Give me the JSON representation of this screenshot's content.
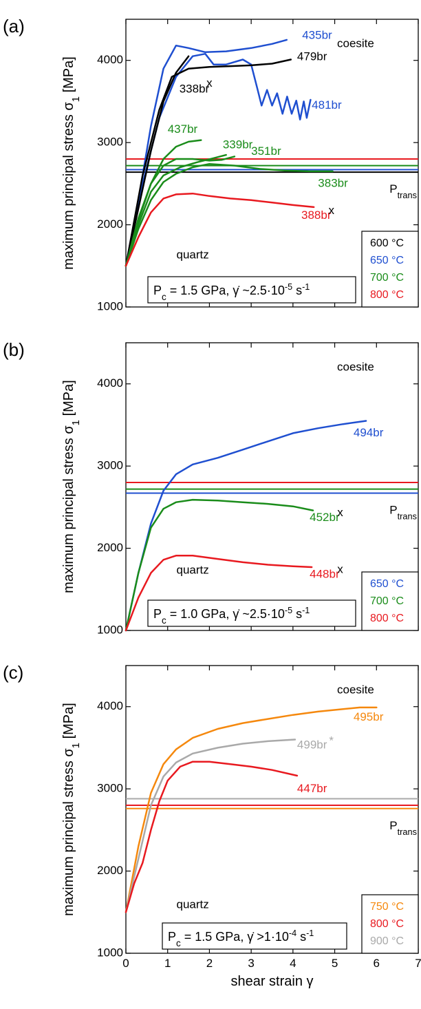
{
  "chart_data": [
    {
      "type": "line",
      "panel_label": "(a)",
      "ylabel": "maximum principal stress σ1 [MPa]",
      "xlabel": "",
      "xlim": [
        0,
        7
      ],
      "ylim": [
        1000,
        4500
      ],
      "xticks": [
        0,
        1,
        2,
        3,
        4,
        5,
        6,
        7
      ],
      "yticks": [
        1000,
        2000,
        3000,
        4000
      ],
      "conditions": "Pc = 1.5 GPa, γ̇ ~2.5·10-5 s-1",
      "region_labels": [
        {
          "text": "coesite",
          "x": 5.5,
          "y": 4160
        },
        {
          "text": "quartz",
          "x": 1.6,
          "y": 1590
        }
      ],
      "legend": [
        {
          "label": "600 °C",
          "color": "#000000"
        },
        {
          "label": "650 °C",
          "color": "#1f4fd0"
        },
        {
          "label": "700 °C",
          "color": "#1a8c1a"
        },
        {
          "label": "800 °C",
          "color": "#e8191f"
        }
      ],
      "ptrans": {
        "label": "Ptrans",
        "lines": [
          {
            "y": 2640,
            "color": "#000000"
          },
          {
            "y": 2670,
            "color": "#1f4fd0"
          },
          {
            "y": 2720,
            "color": "#1a8c1a"
          },
          {
            "y": 2800,
            "color": "#e8191f"
          }
        ]
      },
      "series": [
        {
          "name": "435br",
          "color": "#1f4fd0",
          "points": [
            [
              0,
              1500
            ],
            [
              0.3,
              2300
            ],
            [
              0.6,
              3200
            ],
            [
              0.9,
              3900
            ],
            [
              1.2,
              4180
            ],
            [
              1.5,
              4150
            ],
            [
              1.9,
              4100
            ],
            [
              2.4,
              4110
            ],
            [
              3.0,
              4150
            ],
            [
              3.5,
              4200
            ],
            [
              3.85,
              4250
            ]
          ],
          "label": {
            "text": "435br",
            "x": 4.22,
            "y": 4260
          }
        },
        {
          "name": "481br",
          "color": "#1f4fd0",
          "points": [
            [
              0,
              1500
            ],
            [
              0.4,
              2500
            ],
            [
              0.8,
              3300
            ],
            [
              1.2,
              3800
            ],
            [
              1.6,
              4050
            ],
            [
              1.9,
              4080
            ],
            [
              2.1,
              3950
            ],
            [
              2.4,
              3950
            ],
            [
              2.8,
              4010
            ],
            [
              3.0,
              3950
            ],
            [
              3.15,
              3650
            ],
            [
              3.25,
              3450
            ],
            [
              3.38,
              3640
            ],
            [
              3.5,
              3450
            ],
            [
              3.62,
              3600
            ],
            [
              3.75,
              3350
            ],
            [
              3.86,
              3560
            ],
            [
              3.97,
              3350
            ],
            [
              4.08,
              3510
            ],
            [
              4.17,
              3280
            ],
            [
              4.26,
              3500
            ],
            [
              4.33,
              3300
            ],
            [
              4.42,
              3520
            ]
          ],
          "label": {
            "text": "481br",
            "x": 4.45,
            "y": 3410
          }
        },
        {
          "name": "479br",
          "color": "#000000",
          "points": [
            [
              0,
              1500
            ],
            [
              0.4,
              2600
            ],
            [
              0.8,
              3400
            ],
            [
              1.1,
              3800
            ],
            [
              1.5,
              3900
            ],
            [
              2.0,
              3920
            ],
            [
              2.5,
              3930
            ],
            [
              3.0,
              3940
            ],
            [
              3.5,
              3960
            ],
            [
              3.95,
              4010
            ]
          ],
          "label": {
            "text": "479br",
            "x": 4.1,
            "y": 4000
          }
        },
        {
          "name": "338br",
          "color": "#000000",
          "points": [
            [
              0,
              1500
            ],
            [
              0.3,
              2200
            ],
            [
              0.6,
              2900
            ],
            [
              0.9,
              3500
            ],
            [
              1.2,
              3850
            ],
            [
              1.5,
              4050
            ]
          ],
          "label": {
            "text": "338br",
            "x": 1.28,
            "y": 3610
          },
          "marker": {
            "text": "x",
            "x": 2.0,
            "y": 3680
          }
        },
        {
          "name": "437br",
          "color": "#1a8c1a",
          "points": [
            [
              0,
              1500
            ],
            [
              0.3,
              2050
            ],
            [
              0.6,
              2500
            ],
            [
              0.9,
              2800
            ],
            [
              1.2,
              2950
            ],
            [
              1.5,
              3010
            ],
            [
              1.8,
              3030
            ]
          ],
          "label": {
            "text": "437br",
            "x": 1.0,
            "y": 3120
          }
        },
        {
          "name": "339br",
          "color": "#1a8c1a",
          "points": [
            [
              0,
              1500
            ],
            [
              0.3,
              2000
            ],
            [
              0.6,
              2400
            ],
            [
              0.9,
              2600
            ],
            [
              1.3,
              2700
            ],
            [
              1.7,
              2760
            ],
            [
              2.1,
              2810
            ],
            [
              2.4,
              2850
            ]
          ],
          "label": {
            "text": "339br",
            "x": 2.32,
            "y": 2930
          }
        },
        {
          "name": "351br",
          "color": "#1a8c1a",
          "points": [
            [
              0,
              1500
            ],
            [
              0.3,
              2080
            ],
            [
              0.6,
              2500
            ],
            [
              0.9,
              2720
            ],
            [
              1.2,
              2800
            ],
            [
              1.6,
              2800
            ],
            [
              2.0,
              2780
            ],
            [
              2.3,
              2790
            ],
            [
              2.6,
              2830
            ]
          ],
          "label": {
            "text": "351br",
            "x": 3.0,
            "y": 2850
          }
        },
        {
          "name": "383br",
          "color": "#1a8c1a",
          "points": [
            [
              0,
              1500
            ],
            [
              0.3,
              1950
            ],
            [
              0.6,
              2300
            ],
            [
              0.9,
              2520
            ],
            [
              1.2,
              2620
            ],
            [
              1.6,
              2700
            ],
            [
              2.0,
              2740
            ],
            [
              2.6,
              2720
            ],
            [
              3.2,
              2680
            ],
            [
              3.8,
              2660
            ],
            [
              4.4,
              2650
            ],
            [
              4.95,
              2650
            ]
          ],
          "label": {
            "text": "383br",
            "x": 4.6,
            "y": 2460
          }
        },
        {
          "name": "388br",
          "color": "#e8191f",
          "points": [
            [
              0,
              1500
            ],
            [
              0.3,
              1850
            ],
            [
              0.6,
              2150
            ],
            [
              0.9,
              2320
            ],
            [
              1.2,
              2370
            ],
            [
              1.6,
              2380
            ],
            [
              2.0,
              2350
            ],
            [
              2.5,
              2320
            ],
            [
              3.0,
              2300
            ],
            [
              3.5,
              2270
            ],
            [
              4.0,
              2240
            ],
            [
              4.5,
              2215
            ]
          ],
          "label": {
            "text": "388br",
            "x": 4.2,
            "y": 2070
          },
          "marker": {
            "text": "x",
            "x": 4.92,
            "y": 2130
          }
        }
      ]
    },
    {
      "type": "line",
      "panel_label": "(b)",
      "ylabel": "maximum principal stress σ1 [MPa]",
      "xlabel": "",
      "xlim": [
        0,
        7
      ],
      "ylim": [
        1000,
        4500
      ],
      "xticks": [
        0,
        1,
        2,
        3,
        4,
        5,
        6,
        7
      ],
      "yticks": [
        1000,
        2000,
        3000,
        4000
      ],
      "conditions": "Pc = 1.0 GPa, γ̇ ~2.5·10-5 s-1",
      "region_labels": [
        {
          "text": "coesite",
          "x": 5.5,
          "y": 4160
        },
        {
          "text": "quartz",
          "x": 1.6,
          "y": 1690
        }
      ],
      "legend": [
        {
          "label": "650 °C",
          "color": "#1f4fd0"
        },
        {
          "label": "700 °C",
          "color": "#1a8c1a"
        },
        {
          "label": "800 °C",
          "color": "#e8191f"
        }
      ],
      "ptrans": {
        "label": "Ptrans",
        "lines": [
          {
            "y": 2670,
            "color": "#1f4fd0"
          },
          {
            "y": 2720,
            "color": "#1a8c1a"
          },
          {
            "y": 2800,
            "color": "#e8191f"
          }
        ]
      },
      "series": [
        {
          "name": "494br",
          "color": "#1f4fd0",
          "points": [
            [
              0,
              1000
            ],
            [
              0.3,
              1700
            ],
            [
              0.6,
              2300
            ],
            [
              0.9,
              2700
            ],
            [
              1.2,
              2900
            ],
            [
              1.6,
              3020
            ],
            [
              2.2,
              3100
            ],
            [
              2.8,
              3200
            ],
            [
              3.4,
              3300
            ],
            [
              4.0,
              3400
            ],
            [
              4.6,
              3460
            ],
            [
              5.2,
              3510
            ],
            [
              5.75,
              3550
            ]
          ],
          "label": {
            "text": "494br",
            "x": 5.45,
            "y": 3360
          }
        },
        {
          "name": "452br",
          "color": "#1a8c1a",
          "points": [
            [
              0,
              1000
            ],
            [
              0.3,
              1700
            ],
            [
              0.6,
              2250
            ],
            [
              0.9,
              2480
            ],
            [
              1.2,
              2560
            ],
            [
              1.6,
              2590
            ],
            [
              2.2,
              2580
            ],
            [
              2.8,
              2560
            ],
            [
              3.4,
              2540
            ],
            [
              4.0,
              2510
            ],
            [
              4.48,
              2460
            ]
          ],
          "label": {
            "text": "452br",
            "x": 4.4,
            "y": 2330
          },
          "marker": {
            "text": "x",
            "x": 5.13,
            "y": 2390
          }
        },
        {
          "name": "448br",
          "color": "#e8191f",
          "points": [
            [
              0,
              1000
            ],
            [
              0.3,
              1400
            ],
            [
              0.6,
              1700
            ],
            [
              0.9,
              1860
            ],
            [
              1.2,
              1910
            ],
            [
              1.6,
              1910
            ],
            [
              2.2,
              1870
            ],
            [
              2.8,
              1830
            ],
            [
              3.4,
              1800
            ],
            [
              4.0,
              1780
            ],
            [
              4.45,
              1770
            ]
          ],
          "label": {
            "text": "448br",
            "x": 4.4,
            "y": 1640
          },
          "marker": {
            "text": "x",
            "x": 5.13,
            "y": 1700
          }
        }
      ]
    },
    {
      "type": "line",
      "panel_label": "(c)",
      "ylabel": "maximum principal stress σ1 [MPa]",
      "xlabel": "shear strain γ",
      "xlim": [
        0,
        7
      ],
      "ylim": [
        1000,
        4500
      ],
      "xticks": [
        0,
        1,
        2,
        3,
        4,
        5,
        6,
        7
      ],
      "yticks": [
        1000,
        2000,
        3000,
        4000
      ],
      "conditions": "Pc = 1.5 GPa, γ̇ >1·10-4 s-1",
      "region_labels": [
        {
          "text": "coesite",
          "x": 5.5,
          "y": 4160
        },
        {
          "text": "quartz",
          "x": 1.6,
          "y": 1550
        }
      ],
      "legend": [
        {
          "label": "750 °C",
          "color": "#f5880d"
        },
        {
          "label": "800 °C",
          "color": "#e8191f"
        },
        {
          "label": "900 °C",
          "color": "#a9a9a9"
        }
      ],
      "ptrans": {
        "label": "Ptrans",
        "lines": [
          {
            "y": 2760,
            "color": "#f5880d"
          },
          {
            "y": 2800,
            "color": "#e8191f"
          },
          {
            "y": 2880,
            "color": "#a9a9a9"
          }
        ]
      },
      "series": [
        {
          "name": "495br",
          "color": "#f5880d",
          "points": [
            [
              0,
              1500
            ],
            [
              0.3,
              2300
            ],
            [
              0.6,
              2950
            ],
            [
              0.9,
              3300
            ],
            [
              1.2,
              3480
            ],
            [
              1.6,
              3620
            ],
            [
              2.2,
              3730
            ],
            [
              2.8,
              3800
            ],
            [
              3.4,
              3850
            ],
            [
              4.0,
              3900
            ],
            [
              4.6,
              3940
            ],
            [
              5.2,
              3970
            ],
            [
              5.6,
              3990
            ],
            [
              6.0,
              3990
            ]
          ],
          "label": {
            "text": "495br",
            "x": 5.45,
            "y": 3830
          }
        },
        {
          "name": "499br",
          "color": "#a9a9a9",
          "points": [
            [
              0,
              1500
            ],
            [
              0.3,
              2150
            ],
            [
              0.6,
              2800
            ],
            [
              0.9,
              3150
            ],
            [
              1.2,
              3320
            ],
            [
              1.6,
              3430
            ],
            [
              2.2,
              3500
            ],
            [
              2.8,
              3550
            ],
            [
              3.4,
              3580
            ],
            [
              4.05,
              3600
            ]
          ],
          "label": {
            "text": "499br",
            "x": 4.1,
            "y": 3490
          },
          "marker": {
            "text": "*",
            "x": 4.92,
            "y": 3540
          }
        },
        {
          "name": "447br",
          "color": "#e8191f",
          "points": [
            [
              0,
              1500
            ],
            [
              0.2,
              1850
            ],
            [
              0.4,
              2100
            ],
            [
              0.6,
              2500
            ],
            [
              0.8,
              2850
            ],
            [
              1.0,
              3100
            ],
            [
              1.3,
              3270
            ],
            [
              1.6,
              3330
            ],
            [
              2.0,
              3330
            ],
            [
              2.5,
              3300
            ],
            [
              3.0,
              3270
            ],
            [
              3.5,
              3230
            ],
            [
              4.1,
              3160
            ]
          ],
          "label": {
            "text": "447br",
            "x": 4.1,
            "y": 2960
          }
        }
      ]
    }
  ]
}
